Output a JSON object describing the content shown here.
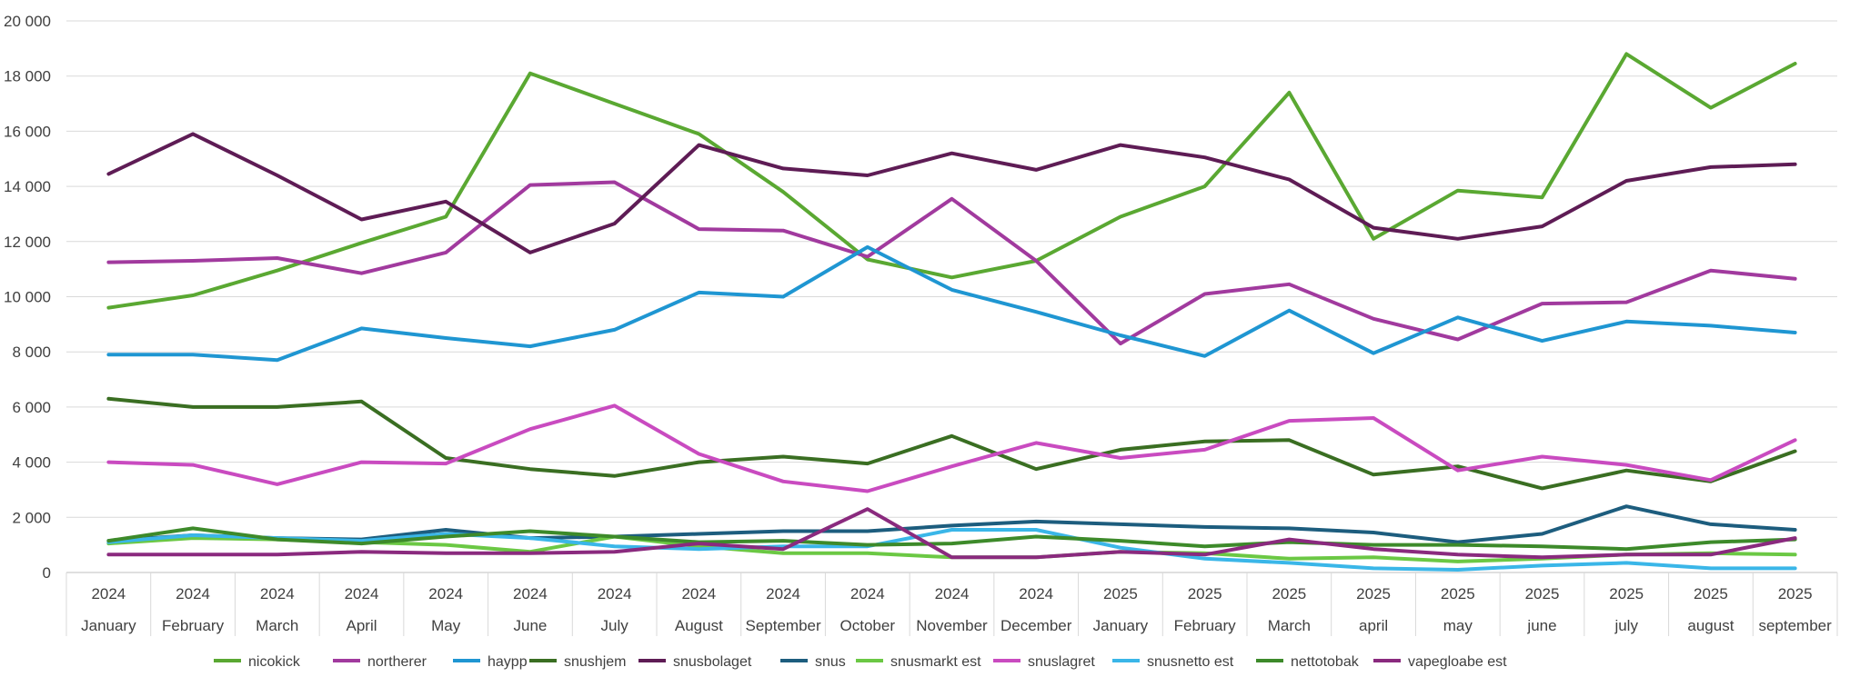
{
  "chart_data": {
    "type": "line",
    "title": "",
    "xlabel": "",
    "ylabel": "",
    "ylim": [
      0,
      20000
    ],
    "yticks": [
      "0",
      "2 000",
      "4 000",
      "6 000",
      "8 000",
      "10 000",
      "12 000",
      "14 000",
      "16 000",
      "18 000",
      "20 000"
    ],
    "ytick_values": [
      0,
      2000,
      4000,
      6000,
      8000,
      10000,
      12000,
      14000,
      16000,
      18000,
      20000
    ],
    "grid": true,
    "legend_position": "bottom",
    "categories": [
      {
        "year": "2024",
        "month": "January"
      },
      {
        "year": "2024",
        "month": "February"
      },
      {
        "year": "2024",
        "month": "March"
      },
      {
        "year": "2024",
        "month": "April"
      },
      {
        "year": "2024",
        "month": "May"
      },
      {
        "year": "2024",
        "month": "June"
      },
      {
        "year": "2024",
        "month": "July"
      },
      {
        "year": "2024",
        "month": "August"
      },
      {
        "year": "2024",
        "month": "September"
      },
      {
        "year": "2024",
        "month": "October"
      },
      {
        "year": "2024",
        "month": "November"
      },
      {
        "year": "2024",
        "month": "December"
      },
      {
        "year": "2025",
        "month": "January"
      },
      {
        "year": "2025",
        "month": "February"
      },
      {
        "year": "2025",
        "month": "March"
      },
      {
        "year": "2025",
        "month": "april"
      },
      {
        "year": "2025",
        "month": "may"
      },
      {
        "year": "2025",
        "month": "june"
      },
      {
        "year": "2025",
        "month": "july"
      },
      {
        "year": "2025",
        "month": "august"
      },
      {
        "year": "2025",
        "month": "september"
      }
    ],
    "series": [
      {
        "name": "nicokick",
        "color": "#5aa832",
        "values": [
          9600,
          10050,
          10950,
          11950,
          12900,
          18100,
          17000,
          15900,
          13800,
          11350,
          10700,
          11300,
          12900,
          14000,
          17400,
          12100,
          13850,
          13600,
          18800,
          16850,
          18450
        ]
      },
      {
        "name": "northerer",
        "color": "#a13a9e",
        "values": [
          11250,
          11300,
          11400,
          10850,
          11600,
          14050,
          14150,
          12450,
          12400,
          11450,
          13550,
          11300,
          8300,
          10100,
          10450,
          9200,
          8450,
          9750,
          9800,
          10950,
          10650
        ]
      },
      {
        "name": "haypp",
        "color": "#1f96d2",
        "values": [
          7900,
          7900,
          7700,
          8850,
          8500,
          8200,
          8800,
          10150,
          10000,
          11800,
          10250,
          9450,
          8600,
          7850,
          9500,
          7950,
          9250,
          8400,
          9100,
          8950,
          8700
        ]
      },
      {
        "name": "snushjem",
        "color": "#3a6e22",
        "values": [
          6300,
          6000,
          6000,
          6200,
          4150,
          3750,
          3500,
          4000,
          4200,
          3950,
          4950,
          3750,
          4450,
          4750,
          4800,
          3550,
          3850,
          3050,
          3700,
          3300,
          4400
        ]
      },
      {
        "name": "snusbolaget",
        "color": "#5e1c55",
        "values": [
          14450,
          15900,
          14400,
          12800,
          13450,
          11600,
          12650,
          15500,
          14650,
          14400,
          15200,
          14600,
          15500,
          15050,
          14250,
          12500,
          12100,
          12550,
          14200,
          14700,
          14800
        ]
      },
      {
        "name": "snus",
        "color": "#1d5d7e",
        "values": [
          1150,
          1350,
          1250,
          1200,
          1550,
          1250,
          1300,
          1400,
          1500,
          1500,
          1700,
          1850,
          1750,
          1650,
          1600,
          1450,
          1100,
          1400,
          2400,
          1750,
          1550
        ]
      },
      {
        "name": "snusmarkt est",
        "color": "#6bc844",
        "values": [
          1050,
          1250,
          1200,
          1100,
          1000,
          750,
          1300,
          950,
          700,
          700,
          550,
          550,
          750,
          700,
          500,
          550,
          400,
          500,
          650,
          700,
          650
        ]
      },
      {
        "name": "snuslagret",
        "color": "#c94bc0",
        "values": [
          4000,
          3900,
          3200,
          4000,
          3950,
          5200,
          6050,
          4300,
          3300,
          2950,
          3850,
          4700,
          4150,
          4450,
          5500,
          5600,
          3700,
          4200,
          3900,
          3350,
          4800
        ]
      },
      {
        "name": "snusnetto est",
        "color": "#3ab6e8",
        "values": [
          1100,
          1350,
          1250,
          1150,
          1400,
          1250,
          950,
          850,
          950,
          950,
          1550,
          1550,
          900,
          500,
          350,
          150,
          100,
          250,
          350,
          150,
          150
        ]
      },
      {
        "name": "nettotobak",
        "color": "#3d8a2a",
        "values": [
          1150,
          1600,
          1200,
          1050,
          1300,
          1500,
          1300,
          1100,
          1150,
          1000,
          1050,
          1300,
          1150,
          950,
          1100,
          1000,
          1000,
          950,
          850,
          1100,
          1200
        ]
      },
      {
        "name": "vapegloabe est",
        "color": "#8a2a7e",
        "values": [
          650,
          650,
          650,
          750,
          700,
          700,
          750,
          1050,
          850,
          2300,
          550,
          550,
          750,
          650,
          1200,
          850,
          650,
          550,
          650,
          650,
          1250
        ]
      }
    ]
  }
}
